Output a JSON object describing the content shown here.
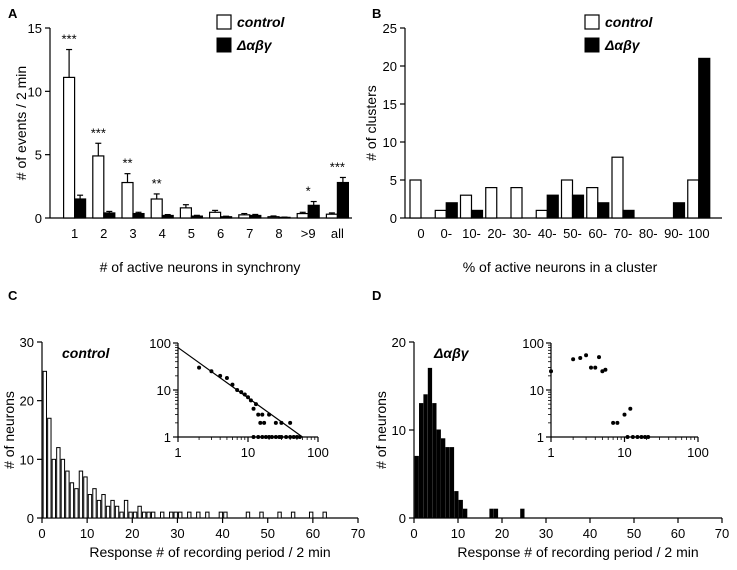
{
  "chart_data": [
    {
      "panel": "A",
      "type": "bar",
      "ylabel": "# of events / 2 min",
      "xlabel": "# of active neurons in synchrony",
      "ylim": [
        0,
        15
      ],
      "yticks": [
        "0",
        "5",
        "10",
        "15"
      ],
      "legend": [
        "control",
        "Δαβγ"
      ],
      "categories": [
        "1",
        "2",
        "3",
        "4",
        "5",
        "6",
        "7",
        "8",
        ">9",
        "all"
      ],
      "series": [
        {
          "name": "control",
          "values": [
            11.1,
            4.9,
            2.8,
            1.5,
            0.8,
            0.45,
            0.25,
            0.1,
            0.35,
            0.3
          ],
          "errors": [
            2.2,
            1.0,
            0.7,
            0.4,
            0.25,
            0.15,
            0.1,
            0.06,
            0.1,
            0.1
          ]
        },
        {
          "name": "Δαβγ",
          "values": [
            1.5,
            0.4,
            0.35,
            0.2,
            0.15,
            0.1,
            0.2,
            0.05,
            1.0,
            2.8
          ],
          "errors": [
            0.3,
            0.12,
            0.1,
            0.07,
            0.06,
            0.04,
            0.08,
            0.02,
            0.3,
            0.4
          ]
        }
      ],
      "annotations": [
        {
          "category": "1",
          "text": "***"
        },
        {
          "category": "2",
          "text": "***"
        },
        {
          "category": "3",
          "text": "**"
        },
        {
          "category": "4",
          "text": "**"
        },
        {
          "category": ">9",
          "text": "*"
        },
        {
          "category": "all",
          "text": "***"
        }
      ]
    },
    {
      "panel": "B",
      "type": "bar",
      "ylabel": "# of clusters",
      "xlabel": "% of active neurons in a cluster",
      "ylim": [
        0,
        25
      ],
      "yticks": [
        "0",
        "5",
        "10",
        "15",
        "20",
        "25"
      ],
      "legend": [
        "control",
        "Δαβγ"
      ],
      "tick_labels": [
        "0",
        "0-",
        "10-",
        "20-",
        "30-",
        "40-",
        "50-",
        "60-",
        "70-",
        "80-",
        "90-",
        "100"
      ],
      "series": [
        {
          "name": "control",
          "values": [
            5,
            1,
            3,
            4,
            4,
            1,
            5,
            4,
            8,
            0,
            0,
            5
          ]
        },
        {
          "name": "Δαβγ",
          "values": [
            0,
            2,
            1,
            0,
            0,
            3,
            3,
            2,
            1,
            0,
            2,
            21
          ]
        }
      ]
    },
    {
      "panel": "C",
      "type": "bar",
      "title": "control",
      "ylabel": "# of neurons",
      "xlabel": "Response # of recording period / 2 min",
      "xlim": [
        0,
        70
      ],
      "ylim": [
        0,
        30
      ],
      "xticks": [
        "0",
        "10",
        "20",
        "30",
        "40",
        "50",
        "60",
        "70"
      ],
      "yticks": [
        "0",
        "10",
        "20",
        "30"
      ],
      "x": [
        1,
        2,
        3,
        4,
        5,
        6,
        7,
        8,
        9,
        10,
        11,
        12,
        13,
        14,
        15,
        16,
        17,
        18,
        19,
        20,
        21,
        22,
        23,
        24,
        25,
        26,
        27,
        28,
        29,
        30,
        31,
        32,
        33,
        34,
        35,
        36,
        37,
        38,
        39,
        40,
        41,
        42,
        43,
        44,
        45,
        46,
        47,
        48,
        49,
        50,
        51,
        52,
        53,
        54,
        55,
        56,
        57,
        58,
        59,
        60,
        61,
        62,
        63,
        64,
        65,
        66,
        67,
        68,
        69,
        70
      ],
      "values": [
        25,
        17,
        10,
        12,
        10,
        8,
        6,
        5,
        8,
        7,
        4,
        5,
        3,
        4,
        2,
        3,
        2,
        1,
        3,
        1,
        1,
        2,
        1,
        1,
        1,
        0,
        1,
        0,
        1,
        1,
        1,
        0,
        1,
        0,
        1,
        0,
        1,
        0,
        0,
        1,
        1,
        0,
        0,
        0,
        0,
        1,
        0,
        0,
        1,
        0,
        0,
        0,
        1,
        0,
        0,
        1,
        0,
        0,
        0,
        1,
        0,
        0,
        1,
        0,
        0,
        0,
        0,
        0,
        0,
        0
      ],
      "inset": {
        "type": "scatter",
        "scale": "log-log",
        "xlim": [
          1,
          100
        ],
        "ylim": [
          1,
          100
        ],
        "xticks": [
          "1",
          "10",
          "100"
        ],
        "yticks": [
          "1",
          "10",
          "100"
        ],
        "points": [
          [
            2,
            30
          ],
          [
            3,
            25
          ],
          [
            4,
            20
          ],
          [
            5,
            18
          ],
          [
            6,
            13
          ],
          [
            7,
            10
          ],
          [
            8,
            9
          ],
          [
            9,
            8
          ],
          [
            10,
            7
          ],
          [
            11,
            6
          ],
          [
            12,
            4
          ],
          [
            13,
            5
          ],
          [
            14,
            3
          ],
          [
            15,
            2
          ],
          [
            16,
            3
          ],
          [
            17,
            2
          ],
          [
            20,
            3
          ],
          [
            25,
            2
          ],
          [
            30,
            2
          ],
          [
            40,
            2
          ],
          [
            12,
            1
          ],
          [
            14,
            1
          ],
          [
            16,
            1
          ],
          [
            18,
            1
          ],
          [
            20,
            1
          ],
          [
            22,
            1
          ],
          [
            25,
            1
          ],
          [
            28,
            1
          ],
          [
            30,
            1
          ],
          [
            35,
            1
          ],
          [
            40,
            1
          ],
          [
            45,
            1
          ],
          [
            50,
            1
          ],
          [
            55,
            1
          ]
        ],
        "fit_line": [
          [
            1,
            80
          ],
          [
            60,
            1
          ]
        ]
      }
    },
    {
      "panel": "D",
      "type": "bar",
      "title": "Δαβγ",
      "ylabel": "# of neurons",
      "xlabel": "Response # of recording period / 2 min",
      "xlim": [
        0,
        70
      ],
      "ylim": [
        0,
        20
      ],
      "xticks": [
        "0",
        "10",
        "20",
        "30",
        "40",
        "50",
        "60",
        "70"
      ],
      "yticks": [
        "0",
        "10",
        "20"
      ],
      "x": [
        1,
        2,
        3,
        4,
        5,
        6,
        7,
        8,
        9,
        10,
        11,
        12,
        13,
        14,
        15,
        16,
        17,
        18,
        19,
        20,
        21,
        22,
        23,
        24,
        25,
        26,
        27,
        28,
        29,
        30,
        31,
        32,
        33,
        34,
        35,
        36,
        37,
        38,
        39,
        40,
        41,
        42,
        43,
        44,
        45,
        46,
        47,
        48,
        49,
        50,
        51,
        52,
        53,
        54,
        55,
        56,
        57,
        58,
        59,
        60,
        61,
        62,
        63,
        64,
        65,
        66,
        67,
        68,
        69,
        70
      ],
      "values": [
        7,
        13,
        14,
        17,
        13,
        10,
        9,
        8,
        8,
        3,
        2,
        1,
        0,
        0,
        0,
        0,
        0,
        1,
        1,
        0,
        0,
        0,
        0,
        0,
        1,
        0,
        0,
        0,
        0,
        0,
        0,
        0,
        0,
        0,
        0,
        0,
        0,
        0,
        0,
        0,
        0,
        0,
        0,
        0,
        0,
        0,
        0,
        0,
        0,
        0,
        0,
        0,
        0,
        0,
        0,
        0,
        0,
        0,
        0,
        0,
        0,
        0,
        0,
        0,
        0,
        0,
        0,
        0,
        0,
        0
      ],
      "inset": {
        "type": "scatter",
        "scale": "log-log",
        "xlim": [
          1,
          100
        ],
        "ylim": [
          1,
          100
        ],
        "xticks": [
          "1",
          "10",
          "100"
        ],
        "yticks": [
          "1",
          "10",
          "100"
        ],
        "points": [
          [
            1,
            25
          ],
          [
            2,
            45
          ],
          [
            2.5,
            48
          ],
          [
            3,
            55
          ],
          [
            3.5,
            30
          ],
          [
            4,
            30
          ],
          [
            4.5,
            50
          ],
          [
            5,
            25
          ],
          [
            5.5,
            27
          ],
          [
            7,
            2
          ],
          [
            8,
            2
          ],
          [
            10,
            3
          ],
          [
            12,
            4
          ],
          [
            11,
            1
          ],
          [
            13,
            1
          ],
          [
            15,
            1
          ],
          [
            17,
            1
          ],
          [
            19,
            1
          ],
          [
            21,
            1
          ]
        ]
      }
    }
  ]
}
